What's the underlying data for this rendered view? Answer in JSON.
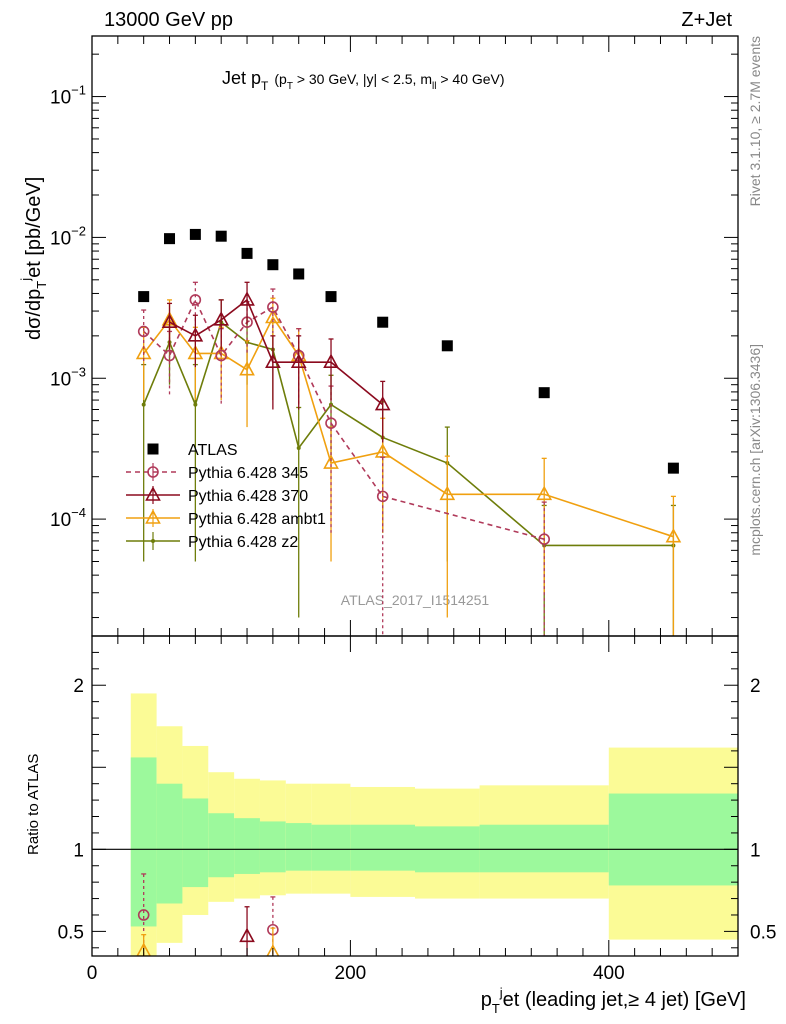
{
  "header": {
    "left": "13000 GeV pp",
    "right": "Z+Jet"
  },
  "side_labels": {
    "rivet": "Rivet 3.1.10, ≥ 2.7M events",
    "mcplots": "mcplots.cern.ch [arXiv:1306.3436]"
  },
  "watermark": "ATLAS_2017_I1514251",
  "colors": {
    "atlas": "#000000",
    "p345": "#b03a5a",
    "p370": "#8b0a1e",
    "ambt1": "#f0a010",
    "z2": "#6e7d0a",
    "band_inner": "#9cf99c",
    "band_outer": "#fbfb96"
  },
  "chart_data": [
    {
      "type": "scatter",
      "title": "Jet pT (pT > 30 GeV, |y| < 2.5, mll > 40 GeV)",
      "title_parts": {
        "main": "Jet p",
        "main_sub": "T",
        "cut_open": "(p",
        "cut_sub": "T",
        "cut_mid": " > 30 GeV, |y| < 2.5, m",
        "cut_sub2": "ll",
        "cut_end": " > 40 GeV)"
      },
      "ylabel_parts": {
        "a": "dσ/dp",
        "sub": "T",
        "sup": "j",
        "b": "et [pb/GeV]"
      },
      "yscale": "log",
      "ylim": [
        1.5e-05,
        0.27
      ],
      "xlim": [
        0,
        500
      ],
      "y_tick_labels": [
        "10^-4",
        "10^-3",
        "10^-2",
        "10^-1"
      ],
      "legend_position": "middle-left",
      "series": [
        {
          "name": "ATLAS",
          "marker": "square",
          "x": [
            40,
            60,
            80,
            100,
            120,
            140,
            160,
            185,
            225,
            275,
            350,
            450
          ],
          "y": [
            0.0038,
            0.0098,
            0.0105,
            0.0102,
            0.0077,
            0.0064,
            0.0055,
            0.0038,
            0.0025,
            0.0017,
            0.00079,
            0.00023
          ]
        },
        {
          "name": "Pythia 6.428 345",
          "marker": "circle",
          "line": "dashed",
          "x": [
            40,
            60,
            80,
            100,
            120,
            140,
            160,
            185,
            225,
            350
          ],
          "y": [
            0.00215,
            0.00145,
            0.0036,
            0.00145,
            0.0025,
            0.0032,
            0.00145,
            0.00048,
            0.000145,
            7.2e-05
          ],
          "yerr": [
            0.0009,
            0.0007,
            0.0012,
            0.0008,
            0.001,
            0.0011,
            0.0008,
            0.0004,
            0.00013,
            6e-05
          ]
        },
        {
          "name": "Pythia 6.428 370",
          "marker": "triangle",
          "line": "solid",
          "x": [
            60,
            80,
            100,
            120,
            140,
            160,
            185,
            225
          ],
          "y": [
            0.0025,
            0.002,
            0.0026,
            0.0036,
            0.0013,
            0.0013,
            0.0013,
            0.00065
          ],
          "yerr": [
            0.0009,
            0.0008,
            0.001,
            0.0012,
            0.0007,
            0.0007,
            0.0006,
            0.0003
          ]
        },
        {
          "name": "Pythia 6.428 ambt1",
          "marker": "triangle",
          "line": "solid",
          "x": [
            40,
            60,
            80,
            100,
            120,
            140,
            160,
            185,
            225,
            275,
            350,
            450
          ],
          "y": [
            0.0015,
            0.0026,
            0.0015,
            0.0015,
            0.00115,
            0.0027,
            0.00145,
            0.00025,
            0.0003,
            0.00015,
            0.00015,
            7.5e-05
          ],
          "yerr": [
            0.0008,
            0.001,
            0.0008,
            0.0008,
            0.0007,
            0.001,
            0.0008,
            0.0002,
            0.00022,
            0.00013,
            0.00012,
            7e-05
          ]
        },
        {
          "name": "Pythia 6.428 z2",
          "marker": "dot",
          "line": "solid",
          "x": [
            40,
            60,
            80,
            100,
            120,
            140,
            160,
            185,
            225,
            275,
            350,
            450
          ],
          "y": [
            0.00065,
            0.0018,
            0.00065,
            0.0025,
            0.0018,
            0.0016,
            0.00032,
            0.00065,
            0.00038,
            0.00025,
            6.5e-05,
            6.5e-05
          ],
          "yerr": [
            0.0006,
            0.0009,
            0.0006,
            0.0011,
            0.0009,
            0.0009,
            0.0003,
            0.0004,
            0.0003,
            0.0002,
            6e-05,
            6e-05
          ]
        }
      ]
    },
    {
      "type": "scatter",
      "ylabel": "Ratio to ATLAS",
      "xlabel_parts": {
        "a": "p",
        "sub": "T",
        "sup": "j",
        "b": "et (leading jet,≥ 4 jet) [GeV]"
      },
      "ylim": [
        0.35,
        2.3
      ],
      "xlim": [
        0,
        500
      ],
      "y_tick_labels": [
        "0.5",
        "1",
        "2"
      ],
      "x_tick_labels": [
        "0",
        "200",
        "400"
      ],
      "reference_line": 1,
      "bands": {
        "edges": [
          30,
          50,
          70,
          90,
          110,
          130,
          150,
          170,
          200,
          250,
          300,
          400,
          500
        ],
        "outer_low": [
          0.3,
          0.43,
          0.6,
          0.68,
          0.7,
          0.72,
          0.73,
          0.73,
          0.71,
          0.7,
          0.7,
          0.45
        ],
        "outer_high": [
          1.95,
          1.75,
          1.63,
          1.47,
          1.43,
          1.42,
          1.4,
          1.4,
          1.38,
          1.37,
          1.39,
          1.62
        ],
        "inner_low": [
          0.53,
          0.67,
          0.77,
          0.83,
          0.85,
          0.86,
          0.87,
          0.87,
          0.87,
          0.86,
          0.86,
          0.78
        ],
        "inner_high": [
          1.56,
          1.4,
          1.31,
          1.22,
          1.19,
          1.17,
          1.16,
          1.15,
          1.15,
          1.14,
          1.15,
          1.34
        ]
      },
      "series": [
        {
          "name": "Pythia 6.428 345",
          "x": [
            40,
            140
          ],
          "y": [
            0.6,
            0.51
          ],
          "yerr": [
            0.25,
            0.2
          ]
        },
        {
          "name": "Pythia 6.428 370",
          "x": [
            120
          ],
          "y": [
            0.47
          ],
          "yerr": [
            0.18
          ]
        },
        {
          "name": "Pythia 6.428 ambt1",
          "x": [
            40,
            140
          ],
          "y": [
            0.38,
            0.37
          ],
          "yerr": [
            0.1,
            0.15
          ]
        }
      ]
    }
  ]
}
